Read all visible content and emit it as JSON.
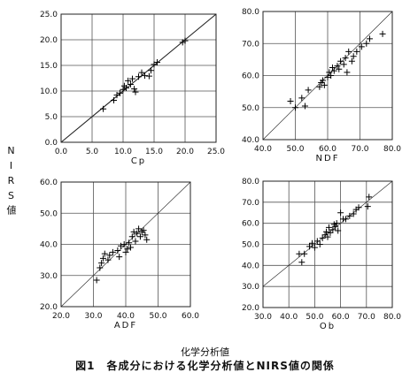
{
  "figure": {
    "y_axis_label": "NIRS値",
    "x_axis_label": "化学分析値",
    "caption": "図1　各成分における化学分析値とNIRS値の関係"
  },
  "chart_data": [
    {
      "type": "scatter",
      "xlabel": "Cp",
      "xlim": [
        0,
        25
      ],
      "ylim": [
        0,
        25
      ],
      "xticks": [
        "0.0",
        "5.0",
        "10.0",
        "15.0",
        "20.0",
        "25.0"
      ],
      "yticks": [
        "0.0",
        "5.0",
        "10.0",
        "15.0",
        "20.0",
        "25.0"
      ],
      "grid": true,
      "diagonal": true,
      "points": [
        [
          6.8,
          6.5
        ],
        [
          8.5,
          8.2
        ],
        [
          9.0,
          9.2
        ],
        [
          9.5,
          9.6
        ],
        [
          10.0,
          10.3
        ],
        [
          10.2,
          11.0
        ],
        [
          10.5,
          10.6
        ],
        [
          10.8,
          12.0
        ],
        [
          11.2,
          11.3
        ],
        [
          11.5,
          12.4
        ],
        [
          11.8,
          10.4
        ],
        [
          12.0,
          9.8
        ],
        [
          12.5,
          12.8
        ],
        [
          13.0,
          13.6
        ],
        [
          13.5,
          13.0
        ],
        [
          14.2,
          12.9
        ],
        [
          14.5,
          14.0
        ],
        [
          15.0,
          15.2
        ],
        [
          15.5,
          15.6
        ],
        [
          19.6,
          19.5
        ],
        [
          20.0,
          19.8
        ]
      ]
    },
    {
      "type": "scatter",
      "xlabel": "NDF",
      "xlim": [
        40,
        80
      ],
      "ylim": [
        40,
        80
      ],
      "xticks": [
        "40.0",
        "50.0",
        "60.0",
        "70.0",
        "80.0"
      ],
      "yticks": [
        "40.0",
        "50.0",
        "60.0",
        "70.0",
        "80.0"
      ],
      "grid": true,
      "diagonal": true,
      "points": [
        [
          48.5,
          52.0
        ],
        [
          50.0,
          50.0
        ],
        [
          52.0,
          53.0
        ],
        [
          53.0,
          50.5
        ],
        [
          54.0,
          55.5
        ],
        [
          57.5,
          56.5
        ],
        [
          58.0,
          57.8
        ],
        [
          58.5,
          58.5
        ],
        [
          59.0,
          57.0
        ],
        [
          60.0,
          59.5
        ],
        [
          60.5,
          61.0
        ],
        [
          61.0,
          60.0
        ],
        [
          61.5,
          62.5
        ],
        [
          62.0,
          61.5
        ],
        [
          63.0,
          63.0
        ],
        [
          63.5,
          62.0
        ],
        [
          64.0,
          64.5
        ],
        [
          65.0,
          63.5
        ],
        [
          65.5,
          65.5
        ],
        [
          66.0,
          61.0
        ],
        [
          66.5,
          67.5
        ],
        [
          67.5,
          64.5
        ],
        [
          68.0,
          66.0
        ],
        [
          69.0,
          67.5
        ],
        [
          70.5,
          69.0
        ],
        [
          72.0,
          70.0
        ],
        [
          73.0,
          71.5
        ],
        [
          77.0,
          73.0
        ]
      ]
    },
    {
      "type": "scatter",
      "xlabel": "ADF",
      "xlim": [
        20,
        60
      ],
      "ylim": [
        20,
        60
      ],
      "xticks": [
        "20.0",
        "30.0",
        "40.0",
        "50.0",
        "60.0"
      ],
      "yticks": [
        "20.0",
        "30.0",
        "40.0",
        "50.0",
        "60.0"
      ],
      "grid": true,
      "diagonal": true,
      "points": [
        [
          31.0,
          28.5
        ],
        [
          32.0,
          32.5
        ],
        [
          32.5,
          34.0
        ],
        [
          33.0,
          35.5
        ],
        [
          33.5,
          37.0
        ],
        [
          34.5,
          35.0
        ],
        [
          35.0,
          36.5
        ],
        [
          36.0,
          37.5
        ],
        [
          37.5,
          38.0
        ],
        [
          38.0,
          36.0
        ],
        [
          38.5,
          39.5
        ],
        [
          39.5,
          40.0
        ],
        [
          40.0,
          37.5
        ],
        [
          40.5,
          38.5
        ],
        [
          41.0,
          40.5
        ],
        [
          41.5,
          39.0
        ],
        [
          42.0,
          42.5
        ],
        [
          42.5,
          44.0
        ],
        [
          43.0,
          41.0
        ],
        [
          43.5,
          43.5
        ],
        [
          44.0,
          45.0
        ],
        [
          44.5,
          42.5
        ],
        [
          45.0,
          44.0
        ],
        [
          45.5,
          44.5
        ],
        [
          46.0,
          43.0
        ],
        [
          46.5,
          41.5
        ]
      ]
    },
    {
      "type": "scatter",
      "xlabel": "Ob",
      "xlim": [
        30,
        80
      ],
      "ylim": [
        20,
        80
      ],
      "xticks": [
        "30.0",
        "40.0",
        "50.0",
        "60.0",
        "70.0",
        "80.0"
      ],
      "yticks": [
        "20.0",
        "30.0",
        "40.0",
        "50.0",
        "60.0",
        "70.0",
        "80.0"
      ],
      "grid": true,
      "diagonal": true,
      "points": [
        [
          44.0,
          45.5
        ],
        [
          45.0,
          41.5
        ],
        [
          46.0,
          45.5
        ],
        [
          48.0,
          49.0
        ],
        [
          49.0,
          50.5
        ],
        [
          50.0,
          48.5
        ],
        [
          51.0,
          51.5
        ],
        [
          52.0,
          50.0
        ],
        [
          53.0,
          53.0
        ],
        [
          54.0,
          54.5
        ],
        [
          54.5,
          56.0
        ],
        [
          55.0,
          53.5
        ],
        [
          55.5,
          58.0
        ],
        [
          56.0,
          55.5
        ],
        [
          57.0,
          57.0
        ],
        [
          57.5,
          59.5
        ],
        [
          58.0,
          58.5
        ],
        [
          58.5,
          60.0
        ],
        [
          59.0,
          56.5
        ],
        [
          60.0,
          65.0
        ],
        [
          61.0,
          62.0
        ],
        [
          62.0,
          62.0
        ],
        [
          63.5,
          63.5
        ],
        [
          65.0,
          64.5
        ],
        [
          66.0,
          66.5
        ],
        [
          67.0,
          67.5
        ],
        [
          70.5,
          68.0
        ],
        [
          71.0,
          72.5
        ]
      ]
    }
  ]
}
